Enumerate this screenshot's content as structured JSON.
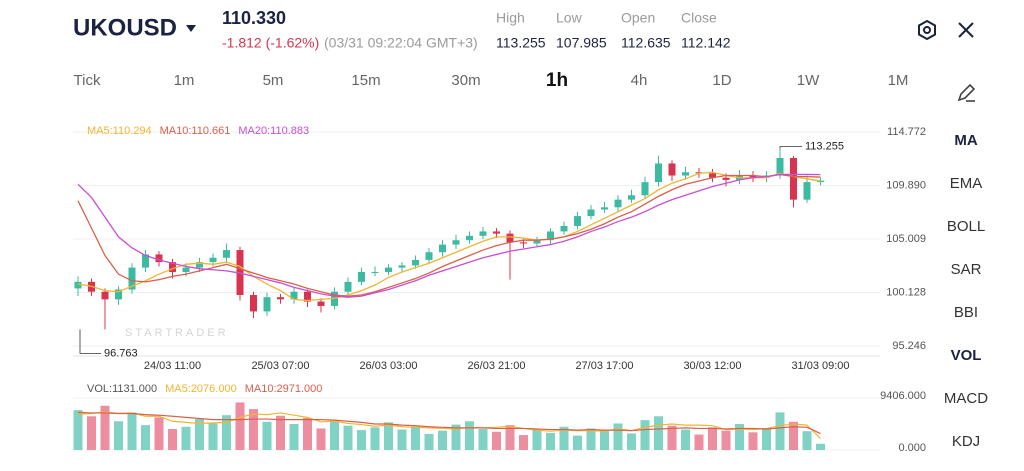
{
  "header": {
    "symbol": "UKOUSD",
    "price": "110.330",
    "change": "-1.812 (-1.62%)",
    "time": "(03/31 09:22:04 GMT+3)",
    "stats": [
      {
        "label": "High",
        "value": "113.255"
      },
      {
        "label": "Low",
        "value": "107.985"
      },
      {
        "label": "Open",
        "value": "112.635"
      },
      {
        "label": "Close",
        "value": "112.142"
      }
    ]
  },
  "timeframes": [
    {
      "label": "Tick",
      "active": false
    },
    {
      "label": "1m",
      "active": false
    },
    {
      "label": "5m",
      "active": false
    },
    {
      "label": "15m",
      "active": false
    },
    {
      "label": "30m",
      "active": false
    },
    {
      "label": "1h",
      "active": true
    },
    {
      "label": "4h",
      "active": false
    },
    {
      "label": "1D",
      "active": false
    },
    {
      "label": "1W",
      "active": false
    },
    {
      "label": "1M",
      "active": false
    }
  ],
  "indicators": [
    {
      "label": "MA",
      "active": true
    },
    {
      "label": "EMA",
      "active": false
    },
    {
      "label": "BOLL",
      "active": false
    },
    {
      "label": "SAR",
      "active": false
    },
    {
      "label": "BBI",
      "active": false
    },
    {
      "label": "VOL",
      "active": true
    },
    {
      "label": "MACD",
      "active": false
    },
    {
      "label": "KDJ",
      "active": false
    }
  ],
  "chart_data": [
    {
      "type": "candlestick",
      "watermark": "STARTRADER",
      "up_color": "#3dbaa2",
      "down_color": "#d9344f",
      "categories": [
        null,
        null,
        null,
        null,
        null,
        null,
        null,
        "24/03 11:00",
        null,
        null,
        null,
        null,
        null,
        null,
        null,
        "25/03 07:00",
        null,
        null,
        null,
        null,
        null,
        null,
        null,
        "26/03 03:00",
        null,
        null,
        null,
        null,
        null,
        null,
        null,
        "26/03 21:00",
        null,
        null,
        null,
        null,
        null,
        null,
        null,
        "27/03 17:00",
        null,
        null,
        null,
        null,
        null,
        null,
        null,
        "30/03 12:00",
        null,
        null,
        null,
        null,
        null,
        null,
        null,
        "31/03 09:00"
      ],
      "open": [
        100.5,
        101.1,
        100.2,
        99.5,
        100.4,
        102.4,
        103.6,
        102.9,
        102.0,
        102.4,
        102.9,
        103.3,
        104.0,
        99.9,
        98.4,
        99.7,
        99.5,
        100.2,
        99.3,
        98.9,
        100.2,
        101.1,
        102.0,
        102.0,
        102.4,
        102.6,
        103.1,
        103.8,
        104.5,
        104.9,
        105.3,
        105.7,
        105.5,
        104.7,
        104.6,
        104.9,
        105.7,
        106.2,
        107.1,
        107.7,
        107.9,
        108.6,
        109.0,
        110.2,
        111.9,
        110.8,
        111.1,
        111.0,
        110.6,
        110.4,
        110.8,
        110.6,
        110.8,
        112.4,
        108.6,
        110.2
      ],
      "high": [
        101.6,
        101.4,
        100.5,
        100.7,
        102.8,
        104.0,
        103.9,
        103.2,
        102.8,
        103.3,
        103.7,
        104.6,
        104.3,
        100.2,
        100.1,
        100.0,
        100.6,
        100.4,
        99.6,
        100.6,
        101.5,
        102.4,
        102.5,
        102.7,
        102.9,
        103.5,
        104.2,
        104.9,
        105.4,
        105.7,
        106.1,
        106.0,
        105.8,
        105.0,
        105.2,
        106.0,
        106.6,
        107.5,
        108.1,
        108.4,
        109.0,
        109.5,
        110.7,
        112.6,
        112.2,
        111.6,
        111.5,
        111.4,
        111.0,
        111.3,
        111.2,
        111.2,
        113.255,
        112.6,
        110.8,
        110.6
      ],
      "low": [
        99.8,
        99.8,
        96.763,
        99.0,
        100.0,
        102.0,
        102.5,
        101.4,
        101.6,
        102.0,
        102.5,
        102.9,
        99.4,
        97.8,
        98.0,
        99.1,
        99.1,
        98.8,
        98.3,
        98.6,
        99.8,
        100.8,
        101.6,
        101.7,
        102.0,
        102.3,
        102.8,
        103.4,
        104.1,
        104.6,
        105.0,
        105.1,
        101.3,
        104.2,
        104.3,
        104.5,
        105.4,
        105.9,
        106.8,
        107.4,
        107.5,
        108.3,
        108.7,
        109.8,
        110.3,
        110.4,
        110.6,
        110.2,
        109.8,
        110.0,
        110.2,
        110.2,
        110.5,
        107.9,
        108.3,
        109.9
      ],
      "close": [
        101.1,
        100.2,
        99.5,
        100.4,
        102.4,
        103.6,
        102.9,
        102.0,
        102.4,
        102.9,
        103.3,
        104.0,
        99.9,
        98.4,
        99.7,
        99.5,
        100.2,
        99.3,
        98.9,
        100.2,
        101.1,
        102.0,
        102.0,
        102.4,
        102.6,
        103.1,
        103.8,
        104.5,
        104.9,
        105.3,
        105.7,
        105.5,
        104.7,
        104.6,
        104.9,
        105.7,
        106.2,
        107.1,
        107.7,
        107.9,
        108.6,
        109.0,
        110.2,
        111.9,
        110.8,
        111.1,
        111.0,
        110.6,
        110.4,
        110.8,
        110.6,
        110.8,
        112.4,
        108.6,
        110.2,
        110.33
      ],
      "series": [
        {
          "name": "MA5:110.294",
          "color": "#f2b531",
          "values": [
            100.9,
            100.7,
            100.3,
            100.2,
            100.7,
            101.2,
            101.8,
            102.3,
            102.7,
            102.8,
            102.7,
            102.9,
            102.5,
            101.6,
            100.9,
            100.3,
            99.5,
            99.4,
            99.5,
            99.6,
            99.9,
            100.3,
            100.8,
            101.5,
            102.0,
            102.4,
            102.8,
            103.3,
            103.8,
            104.3,
            104.8,
            105.2,
            105.2,
            105.1,
            104.9,
            105.0,
            105.2,
            105.7,
            106.3,
            106.9,
            107.5,
            108.1,
            108.7,
            109.5,
            110.1,
            110.5,
            111.0,
            111.1,
            110.8,
            110.6,
            110.6,
            110.6,
            111.0,
            110.7,
            110.5,
            110.294
          ]
        },
        {
          "name": "MA10:110.661",
          "color": "#d9604a",
          "values": [
            108.5,
            106.0,
            103.5,
            101.8,
            101.2,
            101.1,
            101.3,
            101.6,
            101.8,
            102.1,
            102.4,
            102.7,
            102.3,
            101.9,
            101.5,
            101.2,
            100.9,
            100.5,
            100.2,
            99.9,
            99.8,
            99.9,
            100.2,
            100.6,
            101.0,
            101.4,
            101.9,
            102.5,
            103.0,
            103.5,
            104.0,
            104.4,
            104.7,
            104.9,
            104.9,
            105.0,
            105.2,
            105.5,
            105.9,
            106.4,
            107.0,
            107.5,
            108.2,
            108.9,
            109.5,
            110.0,
            110.3,
            110.6,
            110.8,
            110.8,
            110.8,
            110.7,
            110.9,
            110.7,
            110.7,
            110.661
          ]
        },
        {
          "name": "MA20:110.883",
          "color": "#c84fd4",
          "values": [
            110.0,
            108.8,
            107.0,
            105.2,
            104.2,
            103.5,
            103.1,
            102.8,
            102.5,
            102.3,
            102.2,
            102.1,
            101.9,
            101.6,
            101.3,
            101.0,
            100.6,
            100.3,
            100.0,
            99.8,
            99.7,
            99.8,
            100.1,
            100.4,
            100.8,
            101.2,
            101.7,
            102.1,
            102.5,
            102.9,
            103.3,
            103.6,
            103.9,
            104.1,
            104.3,
            104.5,
            104.8,
            105.2,
            105.7,
            106.1,
            106.6,
            107.0,
            107.5,
            108.1,
            108.6,
            109.0,
            109.4,
            109.8,
            110.1,
            110.4,
            110.6,
            110.7,
            110.9,
            110.9,
            110.9,
            110.883
          ]
        }
      ],
      "ylim": [
        95.246,
        114.772
      ],
      "yticks": [
        95.246,
        100.128,
        105.009,
        {
          "value": 109.89,
          "label": "109.890"
        },
        114.772
      ],
      "grid": true
    },
    {
      "type": "bar",
      "title": "VOL:1131.000",
      "up_color": "#7fd2c4",
      "down_color": "#ec8ea0",
      "values": [
        7200,
        6100,
        8000,
        5200,
        6800,
        4500,
        5900,
        3800,
        4200,
        5600,
        4800,
        6300,
        8600,
        7400,
        5100,
        6200,
        4700,
        5800,
        3900,
        5300,
        4400,
        3600,
        4100,
        5000,
        3700,
        4300,
        2900,
        3500,
        4600,
        5200,
        3800,
        3300,
        4500,
        2700,
        3600,
        3100,
        4200,
        2600,
        3900,
        3400,
        4800,
        3000,
        5400,
        6100,
        4400,
        3700,
        2800,
        4100,
        3500,
        4700,
        3200,
        3900,
        6800,
        5100,
        3400,
        1131
      ],
      "series": [
        {
          "name": "MA5:2076.000",
          "color": "#f2b531",
          "values": [
            6500,
            6600,
            6900,
            6600,
            6700,
            6100,
            6100,
            5200,
            5000,
            4800,
            4900,
            5000,
            5900,
            6500,
            6400,
            6700,
            6300,
            5900,
            5100,
            5200,
            4800,
            4600,
            4300,
            4500,
            4200,
            4100,
            4000,
            3900,
            3800,
            4100,
            4000,
            4100,
            4300,
            3900,
            3600,
            3400,
            3600,
            3500,
            3500,
            3400,
            3800,
            3500,
            4100,
            4500,
            4700,
            4500,
            4500,
            4400,
            3700,
            3800,
            3700,
            3900,
            4400,
            4700,
            4500,
            2076
          ]
        },
        {
          "name": "MA10:2971.000",
          "color": "#d9604a",
          "values": [
            6800,
            6700,
            6700,
            6600,
            6600,
            6400,
            6300,
            6100,
            5900,
            5700,
            5500,
            5500,
            5500,
            5600,
            5600,
            5500,
            5500,
            5500,
            5500,
            5400,
            5200,
            5000,
            4700,
            4700,
            4500,
            4400,
            4200,
            4100,
            4000,
            4000,
            4000,
            3900,
            3900,
            3900,
            3800,
            3700,
            3700,
            3600,
            3700,
            3600,
            3600,
            3500,
            3700,
            3800,
            3900,
            4000,
            3900,
            3900,
            3800,
            3900,
            3900,
            3800,
            4000,
            4200,
            4100,
            2971
          ]
        }
      ],
      "ylim": [
        0,
        9406
      ],
      "yticks": [
        {
          "value": 0,
          "label": "0.000"
        },
        {
          "value": 9406,
          "label": "9406.000"
        }
      ]
    }
  ]
}
